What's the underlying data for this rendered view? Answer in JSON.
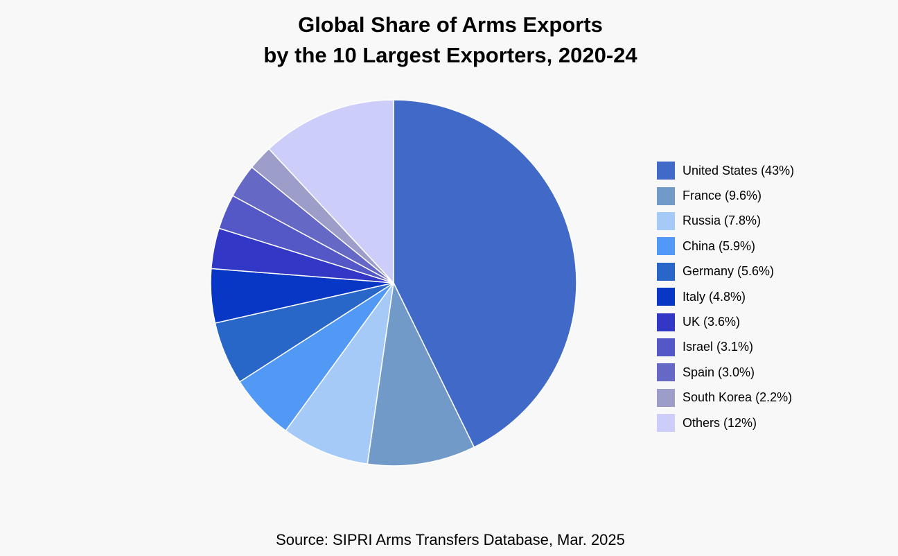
{
  "chart_data": {
    "type": "pie",
    "title": [
      "Global Share of Arms Exports",
      "by the 10 Largest Exporters, 2020-24"
    ],
    "categories": [
      "United States",
      "France",
      "Russia",
      "China",
      "Germany",
      "Italy",
      "UK",
      "Israel",
      "Spain",
      "South Korea",
      "Others"
    ],
    "values": [
      43,
      9.6,
      7.8,
      5.9,
      5.6,
      4.8,
      3.6,
      3.1,
      3.0,
      2.2,
      12
    ],
    "legend_labels": [
      "United States (43%)",
      "France (9.6%)",
      "Russia (7.8%)",
      "China (5.9%)",
      "Germany (5.6%)",
      "Italy (4.8%)",
      "UK (3.6%)",
      "Israel (3.1%)",
      "Spain (3.0%)",
      "South Korea (2.2%)",
      "Others (12%)"
    ],
    "colors": [
      "#4169c7",
      "#729ac8",
      "#a6caf8",
      "#5299f5",
      "#2866c7",
      "#0837c6",
      "#3337c6",
      "#5458c6",
      "#6668c6",
      "#9d9dc9",
      "#cccdf9"
    ],
    "legend_position": "right",
    "start_angle": "12 o'clock",
    "direction": "clockwise",
    "source": "Source: SIPRI Arms Transfers Database, Mar. 2025"
  }
}
